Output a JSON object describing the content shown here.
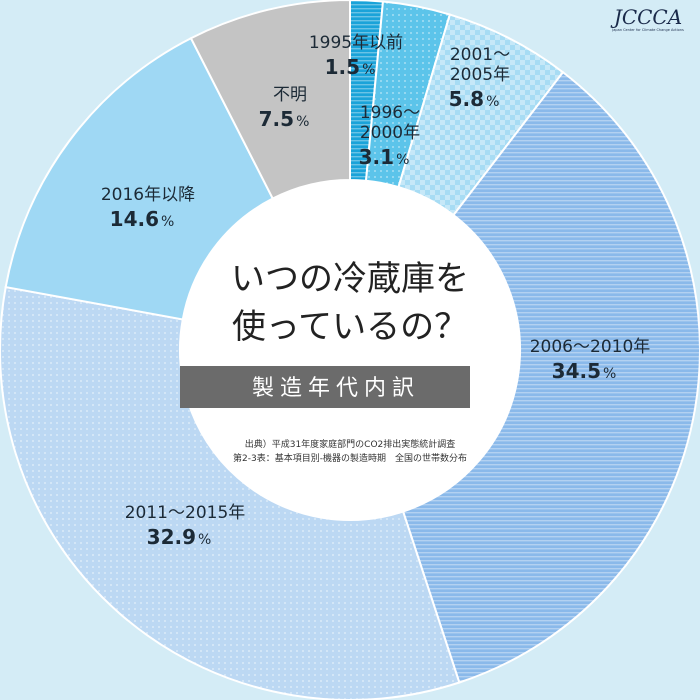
{
  "chart_data": {
    "type": "pie",
    "title_lines": [
      "いつの冷蔵庫を",
      "使っているの？"
    ],
    "subtitle": "製造年代内訳",
    "source_lines": [
      "出典）平成31年度家庭部門のCO2排出実態統計調査",
      "第2-3表：基本項目別-機器の製造時期　全国の世帯数分布"
    ],
    "percent_unit": "%",
    "slices": [
      {
        "name": "1995年以前",
        "name_lines": [
          "1995年以前"
        ],
        "value": 1.5,
        "value_label": "1.5",
        "color": "#1aa3d9"
      },
      {
        "name": "1996〜2000年",
        "name_lines": [
          "1996〜",
          "2000年"
        ],
        "value": 3.1,
        "value_label": "3.1",
        "color": "#5cc4ea"
      },
      {
        "name": "2001〜2005年",
        "name_lines": [
          "2001〜",
          "2005年"
        ],
        "value": 5.8,
        "value_label": "5.8",
        "color": "#a7dcf4"
      },
      {
        "name": "2006〜2010年",
        "name_lines": [
          "2006〜2010年"
        ],
        "value": 34.5,
        "value_label": "34.5",
        "color": "#8ab9ea"
      },
      {
        "name": "2011〜2015年",
        "name_lines": [
          "2011〜2015年"
        ],
        "value": 32.9,
        "value_label": "32.9",
        "color": "#bcd8f3"
      },
      {
        "name": "2016年以降",
        "name_lines": [
          "2016年以降"
        ],
        "value": 14.6,
        "value_label": "14.6",
        "color": "#9fd8f4"
      },
      {
        "name": "不明",
        "name_lines": [
          "不明"
        ],
        "value": 7.5,
        "value_label": "7.5",
        "color": "#c4c4c4"
      }
    ]
  },
  "logo": {
    "text": "JCCCA",
    "subtext": "Japan Center for Climate Change Actions"
  }
}
